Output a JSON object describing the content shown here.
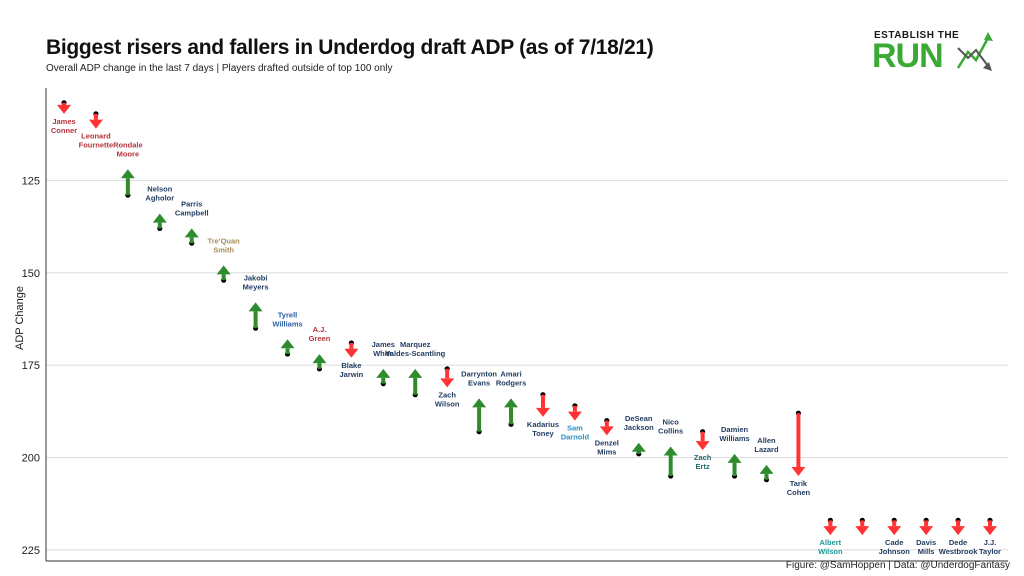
{
  "title": "Biggest risers and fallers in Underdog draft ADP (as of 7/18/21)",
  "subtitle": "Overall ADP change in the last 7 days | Players drafted outside of top 100 only",
  "caption": "Figure: @SamHoppen | Data: @UnderdogFantasy",
  "logo": {
    "top_text": "ESTABLISH THE",
    "main_text": "RUN",
    "brand_color": "#3aa935",
    "icon": "trend-arrows-icon"
  },
  "chart_data": {
    "type": "arrow",
    "ylabel": "ADP Change",
    "y_reversed": true,
    "ylim": [
      228,
      100
    ],
    "yticks": [
      125,
      150,
      175,
      200,
      225
    ],
    "grid": true,
    "colors": {
      "riser": "#2e8b2e",
      "faller": "#ff3333",
      "dot": "#000000"
    },
    "points": [
      {
        "label": [
          "James",
          "Conner"
        ],
        "old": 104,
        "new": 107,
        "label_color": "#b5343c"
      },
      {
        "label": [
          "Leonard",
          "Fournette"
        ],
        "old": 107,
        "new": 111,
        "label_color": "#b5343c"
      },
      {
        "label": [
          "Rondale",
          "Moore"
        ],
        "old": 129,
        "new": 122,
        "label_color": "#b5343c"
      },
      {
        "label": [
          "Nelson",
          "Agholor"
        ],
        "old": 138,
        "new": 134,
        "label_color": "#1f3a5f"
      },
      {
        "label": [
          "Parris",
          "Campbell"
        ],
        "old": 142,
        "new": 138,
        "label_color": "#1f3a5f"
      },
      {
        "label": [
          "Tre'Quan",
          "Smith"
        ],
        "old": 152,
        "new": 148,
        "label_color": "#a88b5a"
      },
      {
        "label": [
          "Jakobi",
          "Meyers"
        ],
        "old": 165,
        "new": 158,
        "label_color": "#1f3a5f"
      },
      {
        "label": [
          "Tyrell",
          "Williams"
        ],
        "old": 172,
        "new": 168,
        "label_color": "#2b5fa0"
      },
      {
        "label": [
          "A.J.",
          "Green"
        ],
        "old": 176,
        "new": 172,
        "label_color": "#b5343c"
      },
      {
        "label": [
          "Blake",
          "Jarwin"
        ],
        "old": 169,
        "new": 173,
        "label_color": "#1f3a5f"
      },
      {
        "label": [
          "James",
          "White"
        ],
        "old": 180,
        "new": 176,
        "label_color": "#1f3a5f"
      },
      {
        "label": [
          "Marquez",
          "Valdes-Scantling"
        ],
        "old": 183,
        "new": 176,
        "label_color": "#1f3a5f"
      },
      {
        "label": [
          "Zach",
          "Wilson"
        ],
        "old": 176,
        "new": 181,
        "label_color": "#1f3a5f"
      },
      {
        "label": [
          "Darrynton",
          "Evans"
        ],
        "old": 193,
        "new": 184,
        "label_color": "#1f3a5f"
      },
      {
        "label": [
          "Amari",
          "Rodgers"
        ],
        "old": 191,
        "new": 184,
        "label_color": "#1f3a5f"
      },
      {
        "label": [
          "Kadarius",
          "Toney"
        ],
        "old": 183,
        "new": 189,
        "label_color": "#1f3a5f"
      },
      {
        "label": [
          "Sam",
          "Darnold"
        ],
        "old": 186,
        "new": 190,
        "label_color": "#2b8fc4"
      },
      {
        "label": [
          "Denzel",
          "Mims"
        ],
        "old": 190,
        "new": 194,
        "label_color": "#1f3a5f"
      },
      {
        "label": [
          "DeSean",
          "Jackson"
        ],
        "old": 199,
        "new": 196,
        "label_color": "#1f3a5f"
      },
      {
        "label": [
          "Nico",
          "Collins"
        ],
        "old": 205,
        "new": 197,
        "label_color": "#1f3a5f"
      },
      {
        "label": [
          "Zach",
          "Ertz"
        ],
        "old": 193,
        "new": 198,
        "label_color": "#1f6b6b"
      },
      {
        "label": [
          "Damien",
          "Williams"
        ],
        "old": 205,
        "new": 199,
        "label_color": "#1f3a5f"
      },
      {
        "label": [
          "Allen",
          "Lazard"
        ],
        "old": 206,
        "new": 202,
        "label_color": "#1f3a5f"
      },
      {
        "label": [
          "Tarik",
          "Cohen"
        ],
        "old": 188,
        "new": 205,
        "label_color": "#1f3a5f"
      },
      {
        "label": [
          "Albert",
          "Wilson"
        ],
        "old": 217,
        "new": 221,
        "label_color": "#1a9a9a"
      },
      {
        "label": [
          "",
          ""
        ],
        "old": 217,
        "new": 221,
        "label_color": "#1f3a5f"
      },
      {
        "label": [
          "Cade",
          "Johnson"
        ],
        "old": 217,
        "new": 221,
        "label_color": "#1f3a5f"
      },
      {
        "label": [
          "Davis",
          "Mills"
        ],
        "old": 217,
        "new": 221,
        "label_color": "#1f3a5f"
      },
      {
        "label": [
          "Dede",
          "Westbrook"
        ],
        "old": 217,
        "new": 221,
        "label_color": "#1f3a5f"
      },
      {
        "label": [
          "J.J.",
          "Taylor"
        ],
        "old": 217,
        "new": 221,
        "label_color": "#1f3a5f"
      }
    ]
  }
}
